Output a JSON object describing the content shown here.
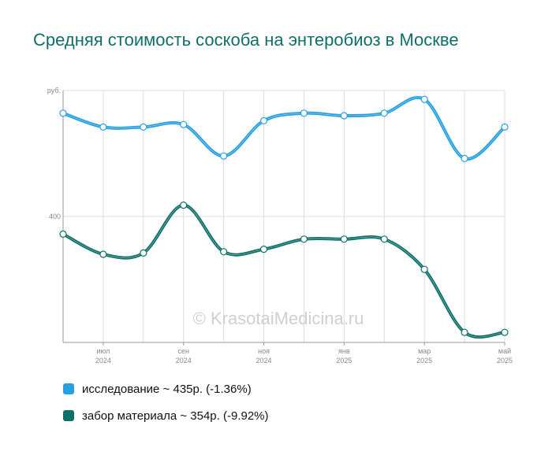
{
  "chart_data": {
    "type": "line",
    "title": "Средняя стоимость соскоба на энтеробиоз в Москве",
    "y_unit_label": "руб.",
    "y_tick_label": "400",
    "ylim": [
      300,
      500
    ],
    "x_ticks": [
      {
        "month": "июл",
        "year": "2024"
      },
      {
        "month": "сен",
        "year": "2024"
      },
      {
        "month": "ноя",
        "year": "2024"
      },
      {
        "month": "янв",
        "year": "2025"
      },
      {
        "month": "мар",
        "year": "2025"
      },
      {
        "month": "май",
        "year": "2025"
      }
    ],
    "x": [
      "2024-06",
      "2024-07",
      "2024-08",
      "2024-09",
      "2024-10",
      "2024-11",
      "2024-12",
      "2025-01",
      "2025-02",
      "2025-03",
      "2025-04",
      "2025-05"
    ],
    "series": [
      {
        "name": "исследование",
        "legend": "исследование ~ 435р. (-1.36%)",
        "color": "#26a0e0",
        "values": [
          482,
          471,
          471,
          473,
          448,
          476,
          482,
          480,
          482,
          493,
          446,
          471
        ]
      },
      {
        "name": "забор материала",
        "legend": "забор материала ~ 354р. (-9.92%)",
        "color": "#0e7067",
        "values": [
          386,
          370,
          371,
          409,
          372,
          374,
          382,
          382,
          382,
          358,
          308,
          308
        ]
      }
    ],
    "grid": true,
    "legend_position": "bottom-left"
  },
  "watermark": "© KrasotaiMedicina.ru"
}
